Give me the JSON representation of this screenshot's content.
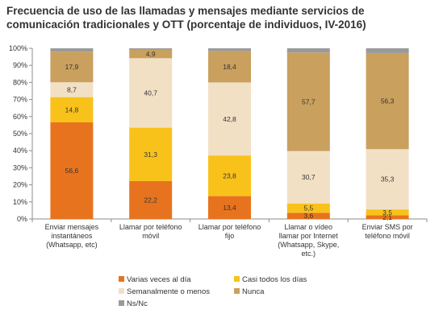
{
  "title": {
    "line1": "Frecuencia de uso de las llamadas y mensajes mediante servicios de",
    "line2": "comunicación tradicionales y OTT (porcentaje de individuos, IV-2016)"
  },
  "chart_data": {
    "type": "bar",
    "stacked": true,
    "percent_scale": true,
    "ylim": [
      0,
      100
    ],
    "y_ticks": [
      "0%",
      "10%",
      "20%",
      "30%",
      "40%",
      "50%",
      "60%",
      "70%",
      "80%",
      "90%",
      "100%"
    ],
    "grid": false,
    "legend_position": "bottom",
    "categories": [
      [
        "Enviar mensajes",
        "instantáneos",
        "(Whatsapp, etc)"
      ],
      [
        "Llamar por teléfono",
        "móvil"
      ],
      [
        "Llamar por teléfono",
        "fijo"
      ],
      [
        "Llamar o vídeo",
        "llamar por Internet",
        "(Whatsapp, Skype,",
        "etc.)"
      ],
      [
        "Enviar SMS por",
        "teléfono móvil"
      ]
    ],
    "series": [
      {
        "name": "Varias veces al día",
        "color": "#e8731e",
        "values": [
          56.6,
          22.2,
          13.4,
          3.6,
          2.1
        ],
        "labels": [
          "56,6",
          "22,2",
          "13,4",
          "3,6",
          "2,1"
        ]
      },
      {
        "name": "Casi todos los días",
        "color": "#f9c21a",
        "values": [
          14.8,
          31.3,
          23.8,
          5.5,
          3.5
        ],
        "labels": [
          "14,8",
          "31,3",
          "23,8",
          "5,5",
          "3,5"
        ]
      },
      {
        "name": "Semanalmente o menos",
        "color": "#f2e0c5",
        "values": [
          8.7,
          40.7,
          42.8,
          30.7,
          35.3
        ],
        "labels": [
          "8,7",
          "40,7",
          "42,8",
          "30,7",
          "35,3"
        ]
      },
      {
        "name": "Nunca",
        "color": "#c9a05e",
        "values": [
          17.9,
          4.9,
          18.4,
          57.7,
          56.3
        ],
        "labels": [
          "17,9",
          "4,9",
          "18,4",
          "57,7",
          "56,3"
        ]
      },
      {
        "name": "Ns/Nc",
        "color": "#9a9a9a",
        "values": [
          2.0,
          0.9,
          1.6,
          2.5,
          2.8
        ],
        "labels": [
          "",
          "",
          "",
          "",
          ""
        ]
      }
    ]
  }
}
